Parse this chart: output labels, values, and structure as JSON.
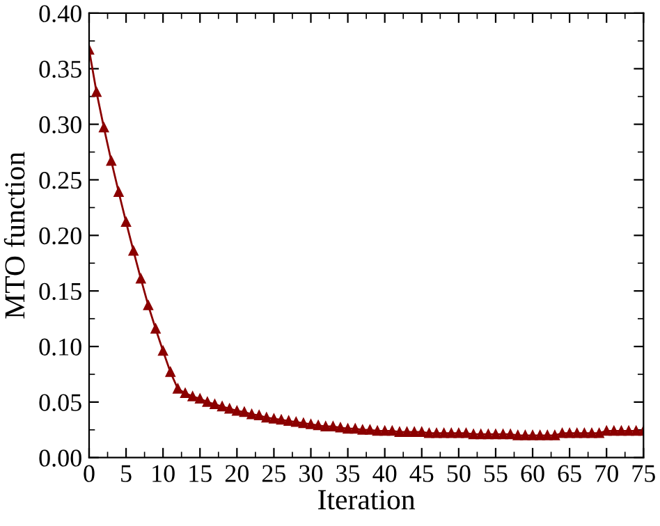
{
  "chart_data": {
    "type": "line",
    "xlabel": "Iteration",
    "ylabel": "MTO function",
    "x": [
      0,
      1,
      2,
      3,
      4,
      5,
      6,
      7,
      8,
      9,
      10,
      11,
      12,
      13,
      14,
      15,
      16,
      17,
      18,
      19,
      20,
      21,
      22,
      23,
      24,
      25,
      26,
      27,
      28,
      29,
      30,
      31,
      32,
      33,
      34,
      35,
      36,
      37,
      38,
      39,
      40,
      41,
      42,
      43,
      44,
      45,
      46,
      47,
      48,
      49,
      50,
      51,
      52,
      53,
      54,
      55,
      56,
      57,
      58,
      59,
      60,
      61,
      62,
      63,
      64,
      65,
      66,
      67,
      68,
      69,
      70,
      71,
      72,
      73,
      74,
      75
    ],
    "series": [
      {
        "color": "#8b0000",
        "values": [
          0.367,
          0.329,
          0.297,
          0.267,
          0.239,
          0.212,
          0.186,
          0.161,
          0.137,
          0.116,
          0.096,
          0.077,
          0.062,
          0.058,
          0.055,
          0.053,
          0.05,
          0.048,
          0.046,
          0.044,
          0.042,
          0.041,
          0.039,
          0.038,
          0.036,
          0.035,
          0.034,
          0.033,
          0.032,
          0.031,
          0.03,
          0.029,
          0.028,
          0.028,
          0.027,
          0.026,
          0.026,
          0.025,
          0.025,
          0.024,
          0.024,
          0.024,
          0.023,
          0.023,
          0.023,
          0.023,
          0.022,
          0.022,
          0.022,
          0.022,
          0.022,
          0.022,
          0.021,
          0.021,
          0.021,
          0.021,
          0.021,
          0.021,
          0.02,
          0.02,
          0.02,
          0.02,
          0.02,
          0.02,
          0.022,
          0.022,
          0.022,
          0.022,
          0.022,
          0.022,
          0.024,
          0.024,
          0.024,
          0.024,
          0.024,
          0.024
        ]
      }
    ],
    "xlim": [
      0,
      75
    ],
    "ylim": [
      0,
      0.4
    ],
    "xticks": [
      0,
      5,
      10,
      15,
      20,
      25,
      30,
      35,
      40,
      45,
      50,
      55,
      60,
      65,
      70,
      75
    ],
    "yticks": [
      {
        "value": 0,
        "label": "0.00"
      },
      {
        "value": 0.05,
        "label": "0.05"
      },
      {
        "value": 0.1,
        "label": "0.10"
      },
      {
        "value": 0.15,
        "label": "0.15"
      },
      {
        "value": 0.2,
        "label": "0.20"
      },
      {
        "value": 0.25,
        "label": "0.25"
      },
      {
        "value": 0.3,
        "label": "0.30"
      },
      {
        "value": 0.35,
        "label": "0.35"
      },
      {
        "value": 0.4,
        "label": "0.40"
      }
    ],
    "marker": "triangle",
    "line_style": "solid",
    "grid": false,
    "legend": false
  }
}
